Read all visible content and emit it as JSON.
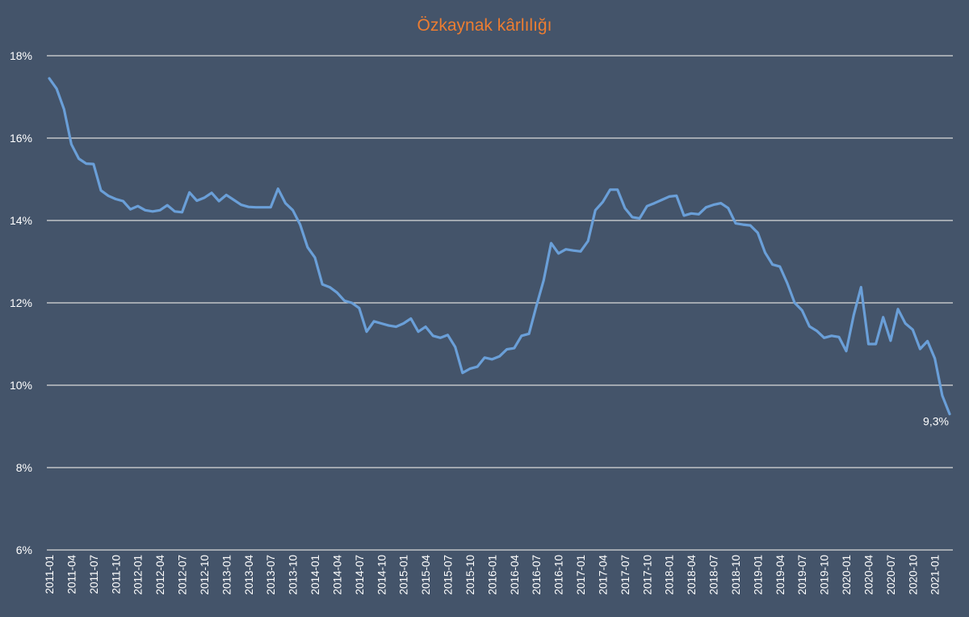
{
  "chart_data": {
    "type": "line",
    "title": "Özkaynak kârlılığı",
    "xlabel": "",
    "ylabel": "",
    "ylim": [
      6,
      18
    ],
    "yticks": [
      6,
      8,
      10,
      12,
      14,
      16,
      18
    ],
    "ytick_labels": [
      "6%",
      "8%",
      "10%",
      "12%",
      "14%",
      "16%",
      "18%"
    ],
    "grid": true,
    "legend": "none",
    "line_color": "#6a9fd8",
    "x_tick_labels": [
      "2011-01",
      "2011-04",
      "2011-07",
      "2011-10",
      "2012-01",
      "2012-04",
      "2012-07",
      "2012-10",
      "2013-01",
      "2013-04",
      "2013-07",
      "2013-10",
      "2014-01",
      "2014-04",
      "2014-07",
      "2014-10",
      "2015-01",
      "2015-04",
      "2015-07",
      "2015-10",
      "2016-01",
      "2016-04",
      "2016-07",
      "2016-10",
      "2017-01",
      "2017-04",
      "2017-07",
      "2017-10",
      "2018-01",
      "2018-04",
      "2018-07",
      "2018-10",
      "2019-01",
      "2019-04",
      "2019-07",
      "2019-10",
      "2020-01",
      "2020-04",
      "2020-07",
      "2020-10",
      "2021-01"
    ],
    "x": [
      "2011-01",
      "2011-02",
      "2011-03",
      "2011-04",
      "2011-05",
      "2011-06",
      "2011-07",
      "2011-08",
      "2011-09",
      "2011-10",
      "2011-11",
      "2011-12",
      "2012-01",
      "2012-02",
      "2012-03",
      "2012-04",
      "2012-05",
      "2012-06",
      "2012-07",
      "2012-08",
      "2012-09",
      "2012-10",
      "2012-11",
      "2012-12",
      "2013-01",
      "2013-02",
      "2013-03",
      "2013-04",
      "2013-05",
      "2013-06",
      "2013-07",
      "2013-08",
      "2013-09",
      "2013-10",
      "2013-11",
      "2013-12",
      "2014-01",
      "2014-02",
      "2014-03",
      "2014-04",
      "2014-05",
      "2014-06",
      "2014-07",
      "2014-08",
      "2014-09",
      "2014-10",
      "2014-11",
      "2014-12",
      "2015-01",
      "2015-02",
      "2015-03",
      "2015-04",
      "2015-05",
      "2015-06",
      "2015-07",
      "2015-08",
      "2015-09",
      "2015-10",
      "2015-11",
      "2015-12",
      "2016-01",
      "2016-02",
      "2016-03",
      "2016-04",
      "2016-05",
      "2016-06",
      "2016-07",
      "2016-08",
      "2016-09",
      "2016-10",
      "2016-11",
      "2016-12",
      "2017-01",
      "2017-02",
      "2017-03",
      "2017-04",
      "2017-05",
      "2017-06",
      "2017-07",
      "2017-08",
      "2017-09",
      "2017-10",
      "2017-11",
      "2017-12",
      "2018-01",
      "2018-02",
      "2018-03",
      "2018-04",
      "2018-05",
      "2018-06",
      "2018-07",
      "2018-08",
      "2018-09",
      "2018-10",
      "2018-11",
      "2018-12",
      "2019-01",
      "2019-02",
      "2019-03",
      "2019-04",
      "2019-05",
      "2019-06",
      "2019-07",
      "2019-08",
      "2019-09",
      "2019-10",
      "2019-11",
      "2019-12",
      "2020-01",
      "2020-02",
      "2020-03",
      "2020-04",
      "2020-05",
      "2020-06",
      "2020-07",
      "2020-08",
      "2020-09",
      "2020-10",
      "2020-11",
      "2020-12",
      "2021-01",
      "2021-02",
      "2021-03"
    ],
    "series": [
      {
        "values": [
          17.45,
          17.2,
          16.7,
          15.85,
          15.5,
          15.38,
          15.37,
          14.73,
          14.6,
          14.52,
          14.47,
          14.27,
          14.35,
          14.25,
          14.22,
          14.25,
          14.37,
          14.22,
          14.2,
          14.68,
          14.48,
          14.55,
          14.67,
          14.47,
          14.62,
          14.5,
          14.38,
          14.33,
          14.32,
          14.32,
          14.32,
          14.77,
          14.42,
          14.25,
          13.9,
          13.35,
          13.1,
          12.45,
          12.38,
          12.25,
          12.05,
          12.0,
          11.87,
          11.3,
          11.55,
          11.5,
          11.45,
          11.42,
          11.5,
          11.62,
          11.3,
          11.42,
          11.2,
          11.15,
          11.22,
          10.93,
          10.3,
          10.4,
          10.45,
          10.67,
          10.63,
          10.7,
          10.87,
          10.9,
          11.2,
          11.25,
          11.92,
          12.55,
          13.45,
          13.2,
          13.3,
          13.27,
          13.25,
          13.5,
          14.25,
          14.45,
          14.75,
          14.75,
          14.3,
          14.08,
          14.05,
          14.35,
          14.42,
          14.5,
          14.58,
          14.6,
          14.12,
          14.17,
          14.15,
          14.32,
          14.38,
          14.42,
          14.3,
          13.93,
          13.9,
          13.88,
          13.7,
          13.22,
          12.93,
          12.88,
          12.48,
          12.0,
          11.82,
          11.43,
          11.32,
          11.15,
          11.2,
          11.17,
          10.83,
          11.7,
          12.38,
          11.0,
          11.0,
          11.65,
          11.08,
          11.85,
          11.5,
          11.35,
          10.88,
          11.07,
          10.65,
          9.75,
          9.3
        ]
      }
    ],
    "annotation": "9,3%"
  }
}
